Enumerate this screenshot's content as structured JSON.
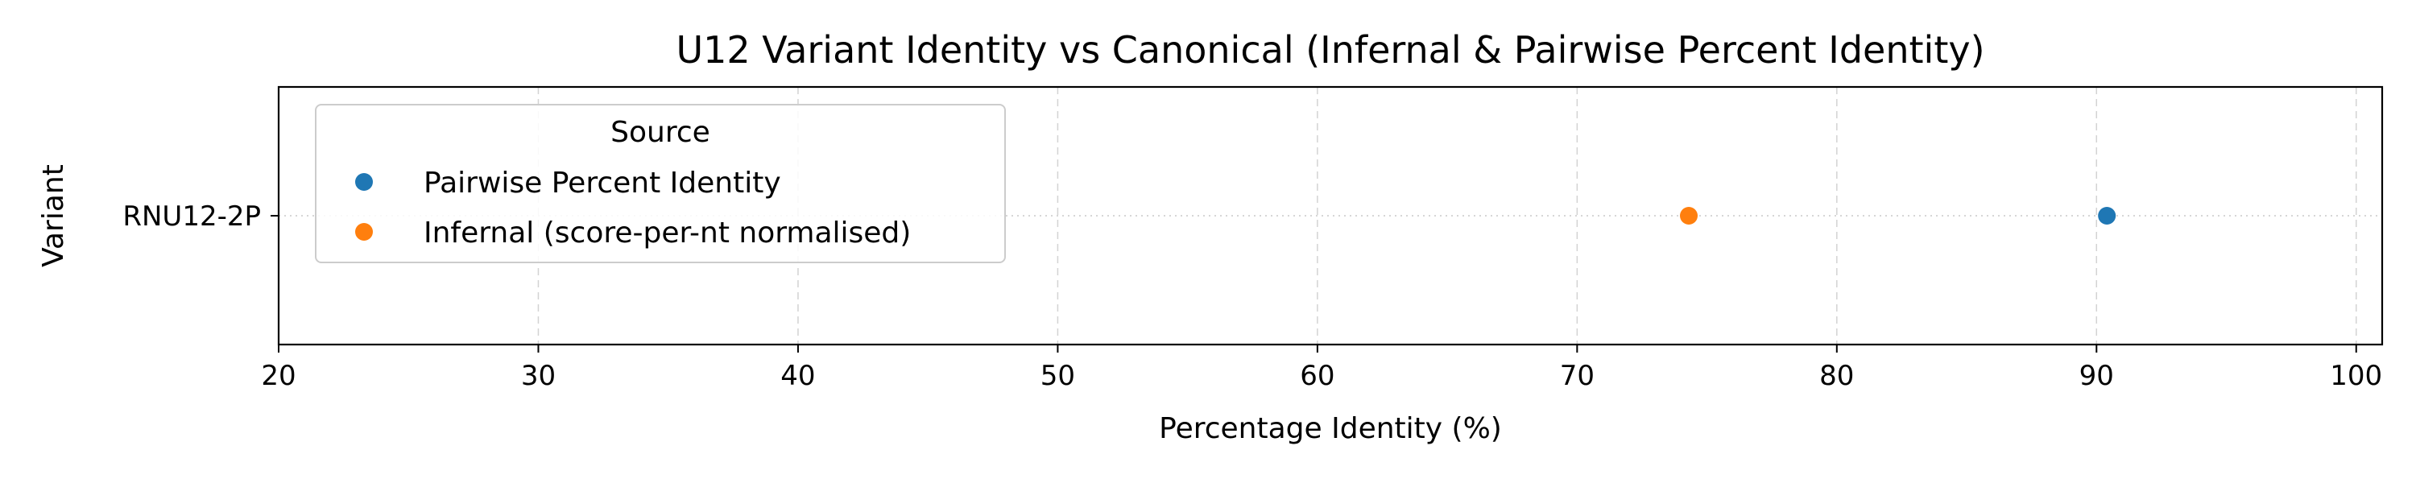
{
  "chart_data": {
    "type": "scatter",
    "title": "U12 Variant Identity vs Canonical (Infernal & Pairwise Percent Identity)",
    "xlabel": "Percentage Identity (%)",
    "ylabel": "Variant",
    "xlim": [
      20,
      101
    ],
    "xticks": [
      "20",
      "30",
      "40",
      "50",
      "60",
      "70",
      "80",
      "90",
      "100"
    ],
    "categories": [
      "RNU12-2P"
    ],
    "grid": true,
    "legend": {
      "title": "Source",
      "placement": "upper-left"
    },
    "series": [
      {
        "name": "Pairwise Percent Identity",
        "color": "#1f77b4",
        "points": [
          {
            "category": "RNU12-2P",
            "x": 90.4
          }
        ]
      },
      {
        "name": "Infernal (score-per-nt normalised)",
        "color": "#ff7f0e",
        "points": [
          {
            "category": "RNU12-2P",
            "x": 74.3
          }
        ]
      }
    ]
  }
}
